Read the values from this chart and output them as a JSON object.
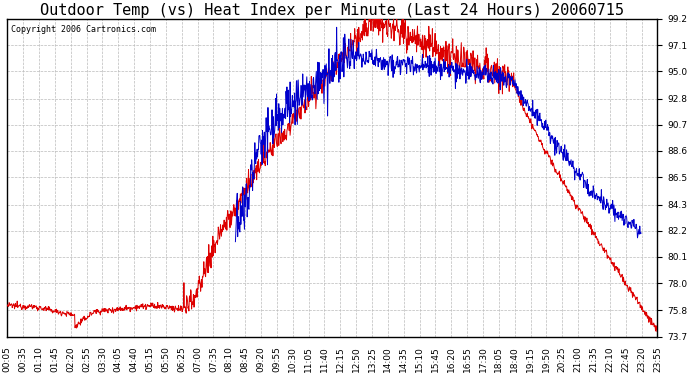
{
  "title": "Outdoor Temp (vs) Heat Index per Minute (Last 24 Hours) 20060715",
  "copyright": "Copyright 2006 Cartronics.com",
  "ylim": [
    73.7,
    99.2
  ],
  "yticks": [
    73.7,
    75.8,
    78.0,
    80.1,
    82.2,
    84.3,
    86.5,
    88.6,
    90.7,
    92.8,
    95.0,
    97.1,
    99.2
  ],
  "xtick_labels": [
    "00:05",
    "00:35",
    "01:10",
    "01:45",
    "02:20",
    "02:55",
    "03:30",
    "04:05",
    "04:40",
    "05:15",
    "05:50",
    "06:25",
    "07:00",
    "07:35",
    "08:10",
    "08:45",
    "09:20",
    "09:55",
    "10:30",
    "11:05",
    "11:40",
    "12:15",
    "12:50",
    "13:25",
    "14:00",
    "14:35",
    "15:10",
    "15:45",
    "16:20",
    "16:55",
    "17:30",
    "18:05",
    "18:40",
    "19:15",
    "19:50",
    "20:25",
    "21:00",
    "21:35",
    "22:10",
    "22:45",
    "23:20",
    "23:55"
  ],
  "background_color": "#ffffff",
  "grid_color": "#bbbbbb",
  "line_color_red": "#dd0000",
  "line_color_blue": "#0000cc",
  "title_fontsize": 11,
  "copyright_fontsize": 6,
  "tick_fontsize": 6.5,
  "figsize": [
    6.9,
    3.75
  ],
  "dpi": 100
}
